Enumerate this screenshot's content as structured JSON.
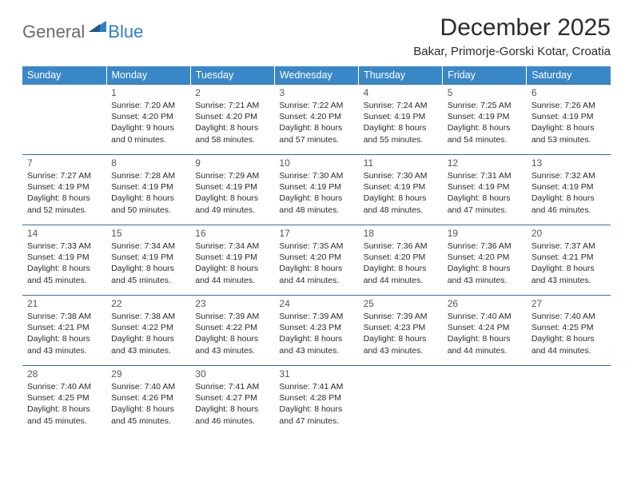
{
  "logo": {
    "text1": "General",
    "text2": "Blue"
  },
  "title": "December 2025",
  "location": "Bakar, Primorje-Gorski Kotar, Croatia",
  "colors": {
    "header_bg": "#3a87c8",
    "header_text": "#ffffff",
    "row_border": "#2f6fa8",
    "logo_gray": "#6a6a6a",
    "logo_blue": "#2f7fc1",
    "body_text": "#2b2b2b",
    "daynum": "#555555",
    "page_bg": "#ffffff"
  },
  "fonts": {
    "title_size": 30,
    "location_size": 15,
    "dow_size": 12.5,
    "daynum_size": 12,
    "body_size": 10.5
  },
  "days_of_week": [
    "Sunday",
    "Monday",
    "Tuesday",
    "Wednesday",
    "Thursday",
    "Friday",
    "Saturday"
  ],
  "weeks": [
    [
      {
        "n": "",
        "sr": "",
        "ss": "",
        "dl": "",
        "empty": true
      },
      {
        "n": "1",
        "sr": "Sunrise: 7:20 AM",
        "ss": "Sunset: 4:20 PM",
        "dl": "Daylight: 9 hours and 0 minutes."
      },
      {
        "n": "2",
        "sr": "Sunrise: 7:21 AM",
        "ss": "Sunset: 4:20 PM",
        "dl": "Daylight: 8 hours and 58 minutes."
      },
      {
        "n": "3",
        "sr": "Sunrise: 7:22 AM",
        "ss": "Sunset: 4:20 PM",
        "dl": "Daylight: 8 hours and 57 minutes."
      },
      {
        "n": "4",
        "sr": "Sunrise: 7:24 AM",
        "ss": "Sunset: 4:19 PM",
        "dl": "Daylight: 8 hours and 55 minutes."
      },
      {
        "n": "5",
        "sr": "Sunrise: 7:25 AM",
        "ss": "Sunset: 4:19 PM",
        "dl": "Daylight: 8 hours and 54 minutes."
      },
      {
        "n": "6",
        "sr": "Sunrise: 7:26 AM",
        "ss": "Sunset: 4:19 PM",
        "dl": "Daylight: 8 hours and 53 minutes."
      }
    ],
    [
      {
        "n": "7",
        "sr": "Sunrise: 7:27 AM",
        "ss": "Sunset: 4:19 PM",
        "dl": "Daylight: 8 hours and 52 minutes."
      },
      {
        "n": "8",
        "sr": "Sunrise: 7:28 AM",
        "ss": "Sunset: 4:19 PM",
        "dl": "Daylight: 8 hours and 50 minutes."
      },
      {
        "n": "9",
        "sr": "Sunrise: 7:29 AM",
        "ss": "Sunset: 4:19 PM",
        "dl": "Daylight: 8 hours and 49 minutes."
      },
      {
        "n": "10",
        "sr": "Sunrise: 7:30 AM",
        "ss": "Sunset: 4:19 PM",
        "dl": "Daylight: 8 hours and 48 minutes."
      },
      {
        "n": "11",
        "sr": "Sunrise: 7:30 AM",
        "ss": "Sunset: 4:19 PM",
        "dl": "Daylight: 8 hours and 48 minutes."
      },
      {
        "n": "12",
        "sr": "Sunrise: 7:31 AM",
        "ss": "Sunset: 4:19 PM",
        "dl": "Daylight: 8 hours and 47 minutes."
      },
      {
        "n": "13",
        "sr": "Sunrise: 7:32 AM",
        "ss": "Sunset: 4:19 PM",
        "dl": "Daylight: 8 hours and 46 minutes."
      }
    ],
    [
      {
        "n": "14",
        "sr": "Sunrise: 7:33 AM",
        "ss": "Sunset: 4:19 PM",
        "dl": "Daylight: 8 hours and 45 minutes."
      },
      {
        "n": "15",
        "sr": "Sunrise: 7:34 AM",
        "ss": "Sunset: 4:19 PM",
        "dl": "Daylight: 8 hours and 45 minutes."
      },
      {
        "n": "16",
        "sr": "Sunrise: 7:34 AM",
        "ss": "Sunset: 4:19 PM",
        "dl": "Daylight: 8 hours and 44 minutes."
      },
      {
        "n": "17",
        "sr": "Sunrise: 7:35 AM",
        "ss": "Sunset: 4:20 PM",
        "dl": "Daylight: 8 hours and 44 minutes."
      },
      {
        "n": "18",
        "sr": "Sunrise: 7:36 AM",
        "ss": "Sunset: 4:20 PM",
        "dl": "Daylight: 8 hours and 44 minutes."
      },
      {
        "n": "19",
        "sr": "Sunrise: 7:36 AM",
        "ss": "Sunset: 4:20 PM",
        "dl": "Daylight: 8 hours and 43 minutes."
      },
      {
        "n": "20",
        "sr": "Sunrise: 7:37 AM",
        "ss": "Sunset: 4:21 PM",
        "dl": "Daylight: 8 hours and 43 minutes."
      }
    ],
    [
      {
        "n": "21",
        "sr": "Sunrise: 7:38 AM",
        "ss": "Sunset: 4:21 PM",
        "dl": "Daylight: 8 hours and 43 minutes."
      },
      {
        "n": "22",
        "sr": "Sunrise: 7:38 AM",
        "ss": "Sunset: 4:22 PM",
        "dl": "Daylight: 8 hours and 43 minutes."
      },
      {
        "n": "23",
        "sr": "Sunrise: 7:39 AM",
        "ss": "Sunset: 4:22 PM",
        "dl": "Daylight: 8 hours and 43 minutes."
      },
      {
        "n": "24",
        "sr": "Sunrise: 7:39 AM",
        "ss": "Sunset: 4:23 PM",
        "dl": "Daylight: 8 hours and 43 minutes."
      },
      {
        "n": "25",
        "sr": "Sunrise: 7:39 AM",
        "ss": "Sunset: 4:23 PM",
        "dl": "Daylight: 8 hours and 43 minutes."
      },
      {
        "n": "26",
        "sr": "Sunrise: 7:40 AM",
        "ss": "Sunset: 4:24 PM",
        "dl": "Daylight: 8 hours and 44 minutes."
      },
      {
        "n": "27",
        "sr": "Sunrise: 7:40 AM",
        "ss": "Sunset: 4:25 PM",
        "dl": "Daylight: 8 hours and 44 minutes."
      }
    ],
    [
      {
        "n": "28",
        "sr": "Sunrise: 7:40 AM",
        "ss": "Sunset: 4:25 PM",
        "dl": "Daylight: 8 hours and 45 minutes."
      },
      {
        "n": "29",
        "sr": "Sunrise: 7:40 AM",
        "ss": "Sunset: 4:26 PM",
        "dl": "Daylight: 8 hours and 45 minutes."
      },
      {
        "n": "30",
        "sr": "Sunrise: 7:41 AM",
        "ss": "Sunset: 4:27 PM",
        "dl": "Daylight: 8 hours and 46 minutes."
      },
      {
        "n": "31",
        "sr": "Sunrise: 7:41 AM",
        "ss": "Sunset: 4:28 PM",
        "dl": "Daylight: 8 hours and 47 minutes."
      },
      {
        "n": "",
        "sr": "",
        "ss": "",
        "dl": "",
        "empty": true
      },
      {
        "n": "",
        "sr": "",
        "ss": "",
        "dl": "",
        "empty": true
      },
      {
        "n": "",
        "sr": "",
        "ss": "",
        "dl": "",
        "empty": true
      }
    ]
  ]
}
